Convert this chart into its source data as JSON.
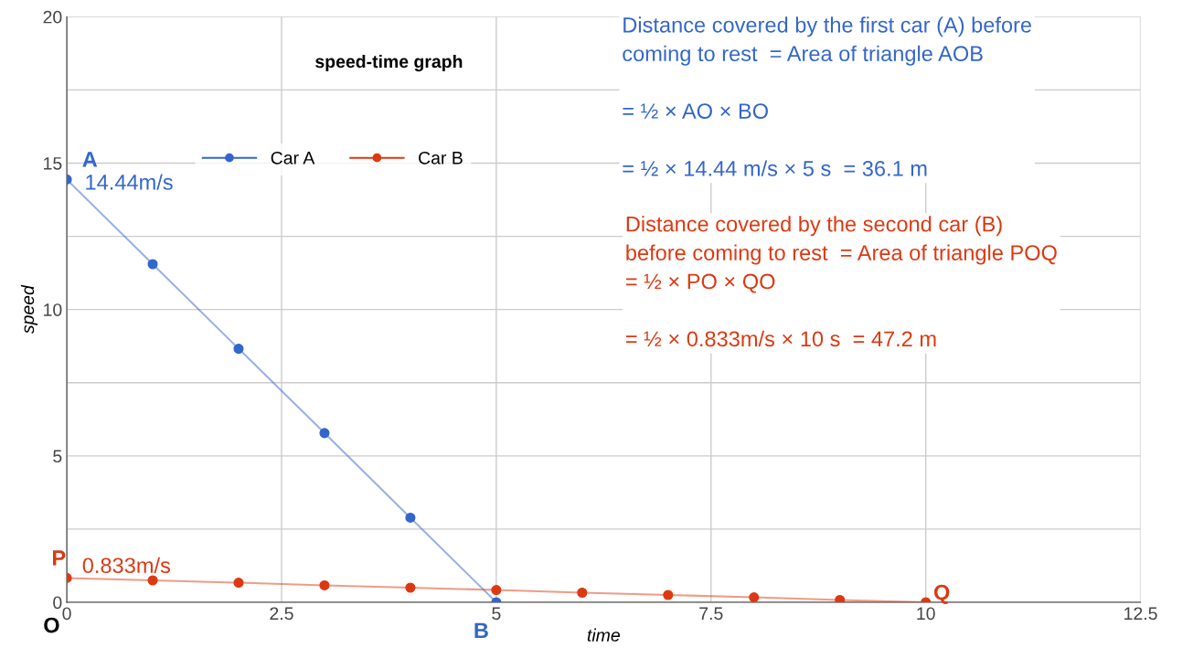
{
  "chart_data": {
    "type": "line",
    "title": "speed-time graph",
    "xlabel": "time",
    "ylabel": "speed",
    "xlim": [
      0,
      12.5
    ],
    "xticks": [
      0,
      2.5,
      5,
      7.5,
      10,
      12.5
    ],
    "ylim": [
      0,
      20
    ],
    "yticks": [
      0,
      {
        "value": 2.5,
        "label": null
      },
      5,
      {
        "value": 7.5,
        "label": null
      },
      10,
      {
        "value": 12.5,
        "label": null
      },
      15,
      {
        "value": 17.5,
        "label": null
      },
      20
    ],
    "grid": true,
    "legend": "top",
    "marker": "circle",
    "series": [
      {
        "name": "Car A",
        "color": "#3366cc",
        "x": [
          0,
          1,
          2,
          3,
          4,
          5
        ],
        "values": [
          14.44,
          11.55,
          8.66,
          5.78,
          2.89,
          0
        ]
      },
      {
        "name": "Car B",
        "color": "#dc3912",
        "x": [
          0,
          1,
          2,
          3,
          4,
          5,
          6,
          7,
          8,
          9,
          10
        ],
        "values": [
          0.83,
          0.75,
          0.67,
          0.58,
          0.5,
          0.42,
          0.33,
          0.25,
          0.17,
          0.08,
          0
        ]
      }
    ],
    "annotations": [
      "Distance covered by the first car (A) before\ncoming to rest  = Area of triangle AOB\n\n= ½ × AO × BO\n\n= ½ × 14.44 m/s × 5 s  = 36.1 m",
      "Distance covered by the second car (B)\nbefore coming to rest  = Area of triangle POQ\n= ½ × PO × QO\n\n= ½ × 0.833m/s × 10 s  = 47.2 m",
      {
        "text": "A",
        "x": 0,
        "y": 14.44
      },
      {
        "text": "14.44m/s",
        "x": 0,
        "y": 14.44
      },
      {
        "text": "P",
        "x": 0,
        "y": 0.83
      },
      {
        "text": "0.833m/s",
        "x": 0,
        "y": 0.83
      },
      "O",
      {
        "text": "B",
        "x": 5,
        "y": 0
      },
      {
        "text": "Q",
        "x": 10,
        "y": 0
      }
    ]
  }
}
